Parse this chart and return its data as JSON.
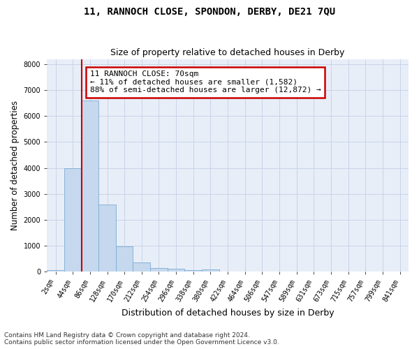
{
  "title": "11, RANNOCH CLOSE, SPONDON, DERBY, DE21 7QU",
  "subtitle": "Size of property relative to detached houses in Derby",
  "xlabel": "Distribution of detached houses by size in Derby",
  "ylabel": "Number of detached properties",
  "bin_labels": [
    "2sqm",
    "44sqm",
    "86sqm",
    "128sqm",
    "170sqm",
    "212sqm",
    "254sqm",
    "296sqm",
    "338sqm",
    "380sqm",
    "422sqm",
    "464sqm",
    "506sqm",
    "547sqm",
    "589sqm",
    "631sqm",
    "673sqm",
    "715sqm",
    "757sqm",
    "799sqm",
    "841sqm"
  ],
  "bar_heights": [
    50,
    4000,
    6600,
    2600,
    970,
    340,
    130,
    110,
    55,
    80,
    10,
    5,
    3,
    2,
    1,
    1,
    0,
    0,
    0,
    0,
    0
  ],
  "bar_color": "#c5d8ee",
  "bar_edgecolor": "#7aadd4",
  "property_size_bin": 1,
  "vline_color": "#cc0000",
  "annotation_text": "11 RANNOCH CLOSE: 70sqm\n← 11% of detached houses are smaller (1,582)\n88% of semi-detached houses are larger (12,872) →",
  "annotation_box_edgecolor": "#cc0000",
  "ylim": [
    0,
    8200
  ],
  "yticks": [
    0,
    1000,
    2000,
    3000,
    4000,
    5000,
    6000,
    7000,
    8000
  ],
  "grid_color": "#c8d4e8",
  "background_color": "#e8eef8",
  "footnote": "Contains HM Land Registry data © Crown copyright and database right 2024.\nContains public sector information licensed under the Open Government Licence v3.0.",
  "title_fontsize": 10,
  "subtitle_fontsize": 9,
  "xlabel_fontsize": 9,
  "ylabel_fontsize": 8.5,
  "tick_fontsize": 7,
  "annot_fontsize": 8,
  "footnote_fontsize": 6.5
}
